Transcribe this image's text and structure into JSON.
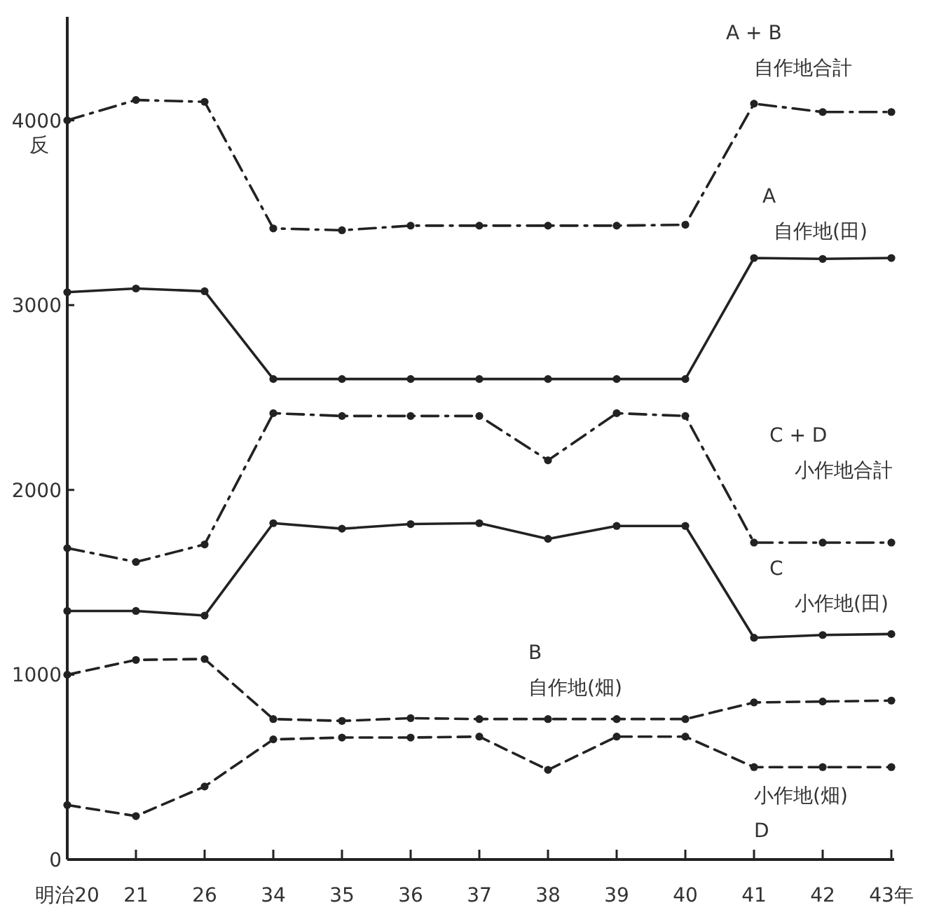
{
  "chart_data": {
    "type": "line",
    "ylabel": "反",
    "categories": [
      "明治20",
      "21",
      "26",
      "34",
      "35",
      "36",
      "37",
      "38",
      "39",
      "40",
      "41",
      "42",
      "43年"
    ],
    "ylim": [
      0,
      4560
    ],
    "yticks": [
      0,
      1000,
      2000,
      3000,
      4000
    ],
    "grid": false,
    "marker": "circle",
    "series": [
      {
        "name": "A + B\n自作地合計",
        "color": "#222222",
        "line_style": "dashdot",
        "values": [
          4000,
          4110,
          4100,
          3415,
          3405,
          3430,
          3430,
          3430,
          3430,
          3435,
          4090,
          4045,
          4045
        ]
      },
      {
        "name": "A\n自作地(田)",
        "color": "#222222",
        "line_style": "solid",
        "values": [
          3070,
          3090,
          3075,
          2600,
          2600,
          2600,
          2600,
          2600,
          2600,
          2600,
          3255,
          3250,
          3255
        ]
      },
      {
        "name": "C + D\n小作地合計",
        "color": "#222222",
        "line_style": "dashdot",
        "values": [
          1685,
          1610,
          1705,
          2415,
          2400,
          2400,
          2400,
          2160,
          2415,
          2400,
          1715,
          1715,
          1715
        ]
      },
      {
        "name": "C\n小作地(田)",
        "color": "#222222",
        "line_style": "solid",
        "values": [
          1345,
          1345,
          1320,
          1820,
          1790,
          1815,
          1820,
          1735,
          1805,
          1805,
          1200,
          1215,
          1220
        ]
      },
      {
        "name": "B\n自作地(畑)",
        "color": "#222222",
        "line_style": "dashed",
        "values": [
          1000,
          1080,
          1085,
          760,
          750,
          765,
          760,
          760,
          760,
          760,
          850,
          855,
          860
        ]
      },
      {
        "name": "小作地(畑)\nD",
        "color": "#222222",
        "line_style": "dashed",
        "values": [
          295,
          235,
          395,
          650,
          660,
          660,
          665,
          485,
          665,
          665,
          500,
          500,
          500
        ]
      }
    ]
  }
}
